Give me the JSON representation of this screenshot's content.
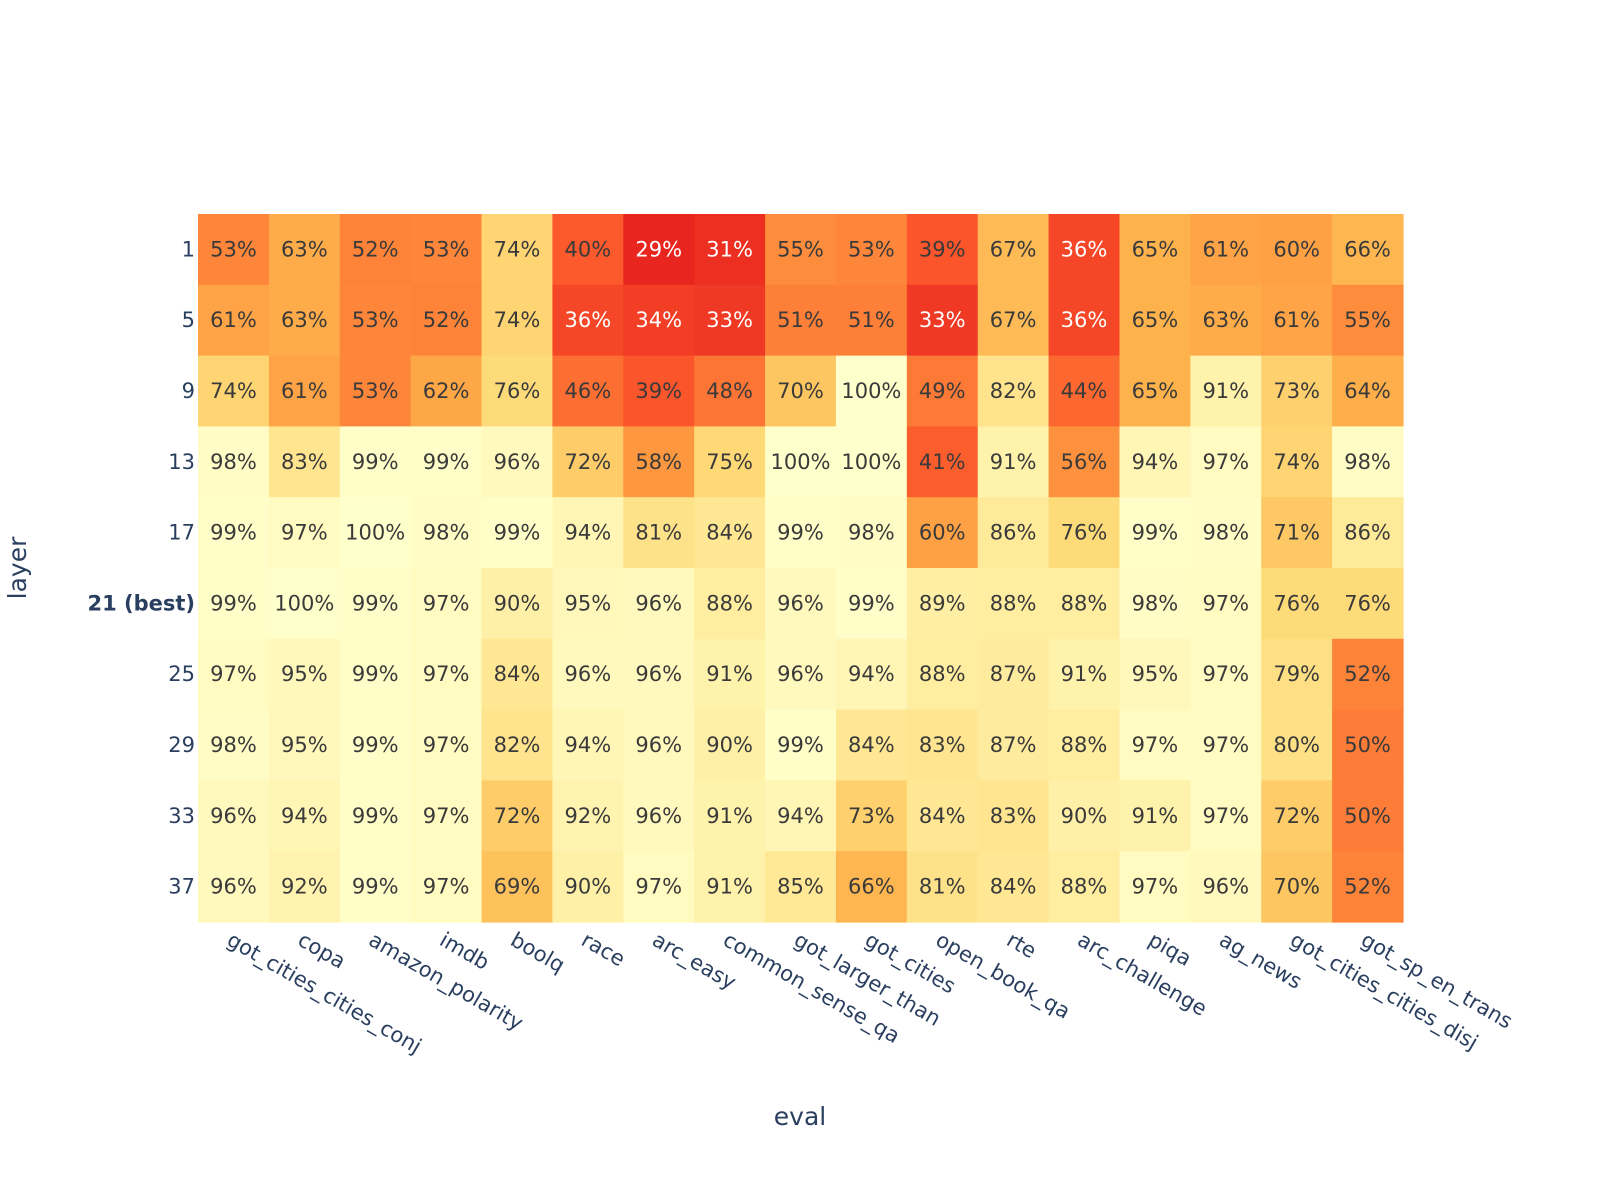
{
  "chart_data": {
    "type": "heatmap",
    "title": "",
    "xlabel": "eval",
    "ylabel": "layer",
    "x": [
      "got_cities_cities_conj",
      "copa",
      "amazon_polarity",
      "imdb",
      "boolq",
      "race",
      "arc_easy",
      "common_sense_qa",
      "got_larger_than",
      "got_cities",
      "open_book_qa",
      "rte",
      "arc_challenge",
      "piqa",
      "ag_news",
      "got_cities_cities_disj",
      "got_sp_en_trans"
    ],
    "y": [
      "1",
      "5",
      "9",
      "13",
      "17",
      "21 (best)",
      "25",
      "29",
      "33",
      "37"
    ],
    "highlight_row": "21 (best)",
    "value_format": "percent",
    "z": [
      [
        53,
        63,
        52,
        53,
        74,
        40,
        29,
        31,
        55,
        53,
        39,
        67,
        36,
        65,
        61,
        60,
        66
      ],
      [
        61,
        63,
        53,
        52,
        74,
        36,
        34,
        33,
        51,
        51,
        33,
        67,
        36,
        65,
        63,
        61,
        55
      ],
      [
        74,
        61,
        53,
        62,
        76,
        46,
        39,
        48,
        70,
        100,
        49,
        82,
        44,
        65,
        91,
        73,
        64
      ],
      [
        98,
        83,
        99,
        99,
        96,
        72,
        58,
        75,
        100,
        100,
        41,
        91,
        56,
        94,
        97,
        74,
        98
      ],
      [
        99,
        97,
        100,
        98,
        99,
        94,
        81,
        84,
        99,
        98,
        60,
        86,
        76,
        99,
        98,
        71,
        86
      ],
      [
        99,
        100,
        99,
        97,
        90,
        95,
        96,
        88,
        96,
        99,
        89,
        88,
        88,
        98,
        97,
        76,
        76
      ],
      [
        97,
        95,
        99,
        97,
        84,
        96,
        96,
        91,
        96,
        94,
        88,
        87,
        91,
        95,
        97,
        79,
        52
      ],
      [
        98,
        95,
        99,
        97,
        82,
        94,
        96,
        90,
        99,
        84,
        83,
        87,
        88,
        97,
        97,
        80,
        50
      ],
      [
        96,
        94,
        99,
        97,
        72,
        92,
        96,
        91,
        94,
        73,
        84,
        83,
        90,
        91,
        97,
        72,
        50
      ],
      [
        96,
        92,
        99,
        97,
        69,
        90,
        97,
        91,
        85,
        66,
        81,
        84,
        88,
        97,
        96,
        70,
        52
      ]
    ],
    "colorscale": [
      [
        29,
        "#e8261f"
      ],
      [
        40,
        "#fc5a2c"
      ],
      [
        55,
        "#fd8d3c"
      ],
      [
        65,
        "#feb24c"
      ],
      [
        75,
        "#fed976"
      ],
      [
        88,
        "#ffeda0"
      ],
      [
        100,
        "#ffffcc"
      ]
    ],
    "text_colors": {
      "dark": "#3a3a3a",
      "light": "#ffffff"
    },
    "axis_color": "#2a3f5f"
  }
}
